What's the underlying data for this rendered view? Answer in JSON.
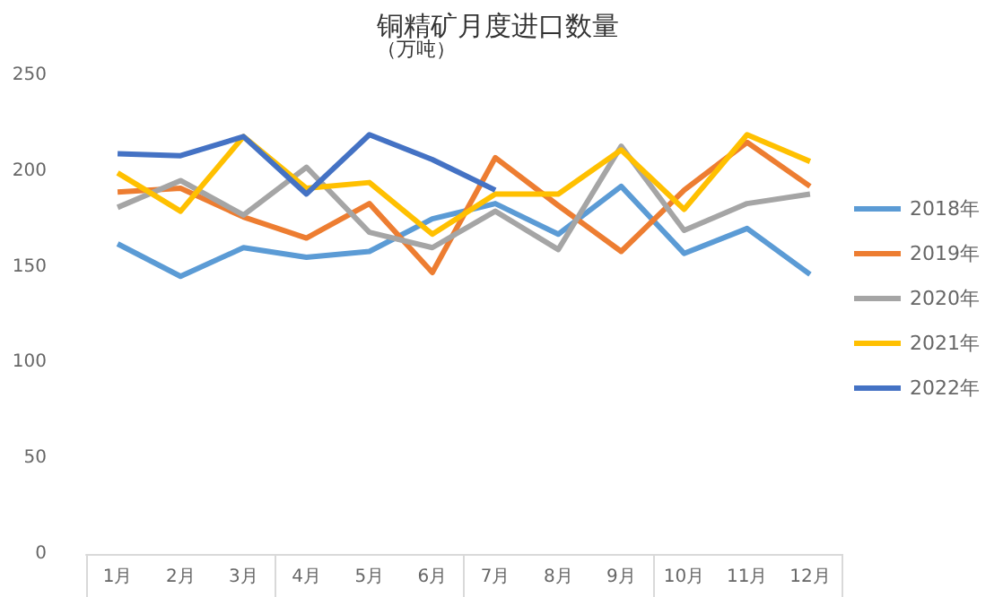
{
  "chart_data": {
    "type": "line",
    "title": "铜精矿月度进口数量",
    "subtitle": "（万吨）",
    "categories": [
      "1月",
      "2月",
      "3月",
      "4月",
      "5月",
      "6月",
      "7月",
      "8月",
      "9月",
      "10月",
      "11月",
      "12月"
    ],
    "series": [
      {
        "name": "2018年",
        "color": "#5b9bd5",
        "values": [
          162,
          145,
          160,
          155,
          158,
          175,
          183,
          167,
          192,
          157,
          170,
          146
        ]
      },
      {
        "name": "2019年",
        "color": "#ed7d31",
        "values": [
          189,
          191,
          176,
          165,
          183,
          147,
          207,
          182,
          158,
          190,
          215,
          192
        ]
      },
      {
        "name": "2020年",
        "color": "#a5a5a5",
        "values": [
          181,
          195,
          177,
          202,
          168,
          160,
          179,
          159,
          213,
          169,
          183,
          188
        ]
      },
      {
        "name": "2021年",
        "color": "#ffc000",
        "values": [
          199,
          179,
          218,
          191,
          194,
          167,
          188,
          188,
          211,
          180,
          219,
          205
        ]
      },
      {
        "name": "2022年",
        "color": "#4472c4",
        "values": [
          209,
          208,
          218,
          188,
          219,
          206,
          190,
          null,
          null,
          null,
          null,
          null
        ]
      }
    ],
    "ylim": [
      0,
      250
    ],
    "yticks": [
      0,
      50,
      100,
      150,
      200,
      250
    ],
    "grid": false,
    "legend": "right",
    "marker": "none",
    "line_style": "solid"
  }
}
